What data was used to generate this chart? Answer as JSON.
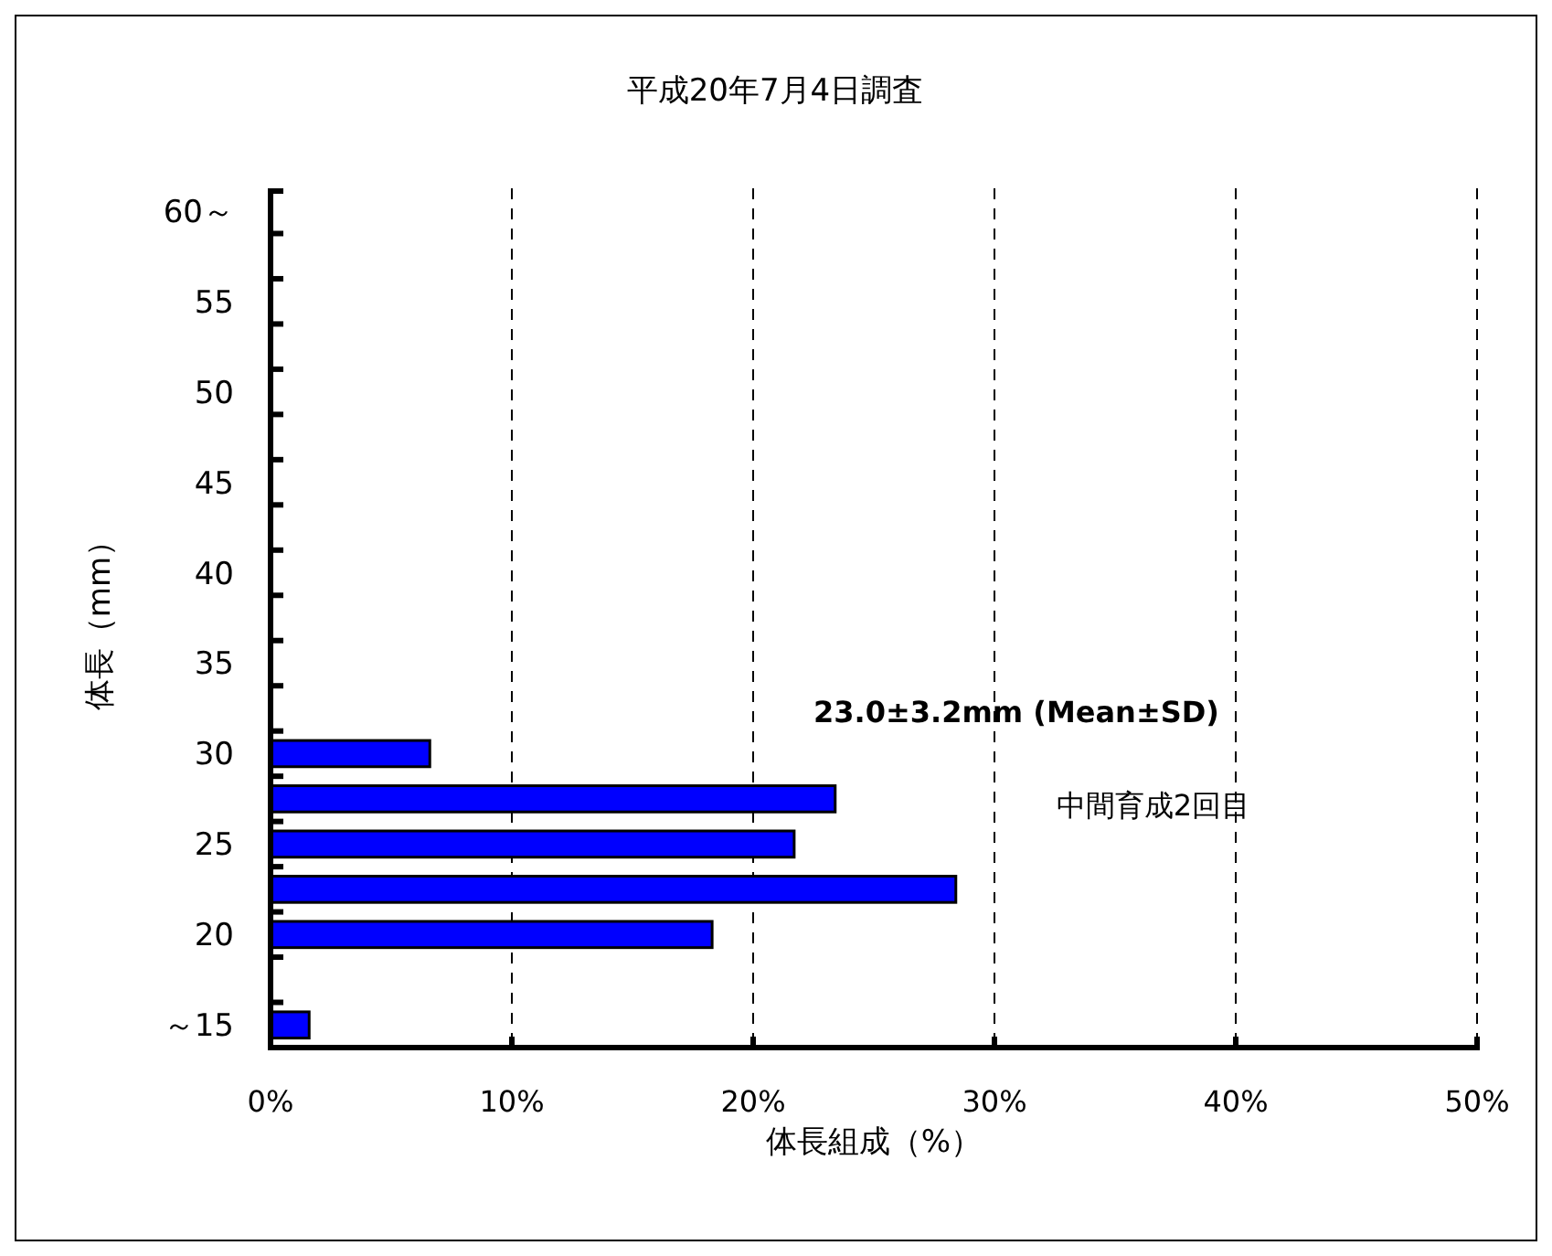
{
  "chart_data": {
    "type": "bar",
    "orientation": "horizontal",
    "title": "平成20年7月4日調査",
    "xlabel": "体長組成（%）",
    "ylabel": "体長（mm）",
    "categories": [
      "60～",
      null,
      "55",
      null,
      "50",
      null,
      "45",
      null,
      "40",
      null,
      "35",
      null,
      "30",
      null,
      "25",
      null,
      "20",
      null,
      "～15"
    ],
    "values": [
      0,
      0,
      0,
      0,
      0,
      0,
      0,
      0,
      0,
      0,
      0,
      0,
      6.6,
      23.4,
      21.7,
      28.4,
      18.3,
      0,
      1.6
    ],
    "color": "#0000ff",
    "xlim": [
      0,
      50
    ],
    "xticks": [
      {
        "value": 0,
        "label": "0%"
      },
      {
        "value": 10,
        "label": "10%"
      },
      {
        "value": 20,
        "label": "20%"
      },
      {
        "value": 30,
        "label": "30%"
      },
      {
        "value": 40,
        "label": "40%"
      },
      {
        "value": 50,
        "label": "50%"
      }
    ],
    "grid": "x",
    "annotations": [
      "23.0±3.2mm (Mean±SD)",
      "中間育成2回目"
    ]
  }
}
